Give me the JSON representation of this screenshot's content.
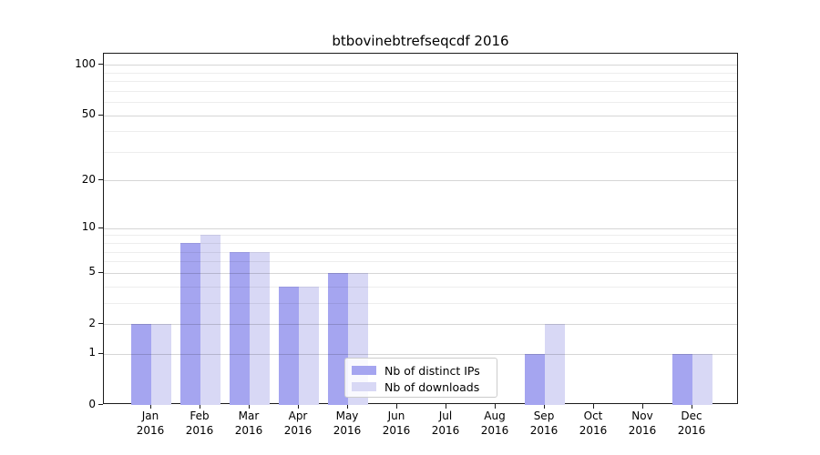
{
  "title": "btbovinebtrefseqcdf 2016",
  "chart_data": {
    "type": "bar",
    "title": "btbovinebtrefseqcdf 2016",
    "categories": [
      "Jan 2016",
      "Feb 2016",
      "Mar 2016",
      "Apr 2016",
      "May 2016",
      "Jun 2016",
      "Jul 2016",
      "Aug 2016",
      "Sep 2016",
      "Oct 2016",
      "Nov 2016",
      "Dec 2016"
    ],
    "x_tick_months": [
      "Jan",
      "Feb",
      "Mar",
      "Apr",
      "May",
      "Jun",
      "Jul",
      "Aug",
      "Sep",
      "Oct",
      "Nov",
      "Dec"
    ],
    "x_tick_year": "2016",
    "series": [
      {
        "name": "Nb of distinct IPs",
        "color": "#a5a5f0",
        "values": [
          2,
          8,
          7,
          4,
          5,
          0,
          0,
          0,
          1,
          0,
          0,
          1
        ]
      },
      {
        "name": "Nb of downloads",
        "color": "#d8d8f5",
        "values": [
          2,
          9,
          7,
          4,
          5,
          0,
          0,
          0,
          2,
          0,
          0,
          1
        ]
      }
    ],
    "yscale": "log1p",
    "ylim": [
      0,
      116
    ],
    "y_major_ticks": [
      0,
      1,
      2,
      5,
      10,
      20,
      50,
      100
    ],
    "y_minor_ticks": [
      3,
      4,
      6,
      7,
      8,
      9,
      30,
      40,
      60,
      70,
      80,
      90
    ],
    "grid": true,
    "legend_position": "lower center"
  }
}
